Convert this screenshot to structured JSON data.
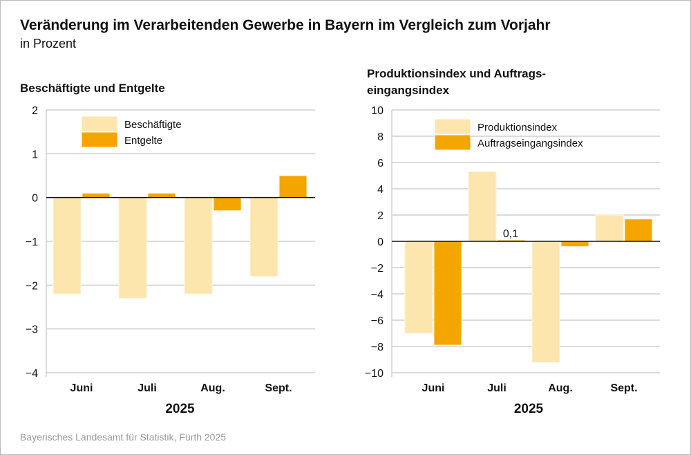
{
  "title": "Veränderung im Verarbeitenden Gewerbe in Bayern im Vergleich zum Vorjahr",
  "subtitle": "in Prozent",
  "source": "Bayerisches Landesamt für Statistik, Fürth 2025",
  "colors": {
    "light": "#fde6ad",
    "dark": "#f5a500"
  },
  "chart_data": [
    {
      "type": "bar",
      "title": "Beschäftigte und Entgelte",
      "categories": [
        "Juni",
        "Juli",
        "Aug.",
        "Sept."
      ],
      "xlabel": "2025",
      "ylim": [
        -4,
        2
      ],
      "yticks": [
        2,
        1,
        0,
        -1,
        -2,
        -3,
        -4
      ],
      "ytick_labels": [
        "2",
        "1",
        "0",
        "−1",
        "−2",
        "−3",
        "−4"
      ],
      "grid": true,
      "legend": "top-left",
      "series": [
        {
          "name": "Beschäftigte",
          "values": [
            -2.2,
            -2.3,
            -2.2,
            -1.8
          ]
        },
        {
          "name": "Entgelte",
          "values": [
            0.1,
            0.1,
            -0.3,
            0.5
          ]
        }
      ]
    },
    {
      "type": "bar",
      "title": "Produktionsindex und Auftrags-eingangsindex",
      "categories": [
        "Juni",
        "Juli",
        "Aug.",
        "Sept."
      ],
      "xlabel": "2025",
      "ylim": [
        -10,
        10
      ],
      "yticks": [
        10,
        8,
        6,
        4,
        2,
        0,
        -2,
        -4,
        -6,
        -8,
        -10
      ],
      "ytick_labels": [
        "10",
        "8",
        "6",
        "4",
        "2",
        "0",
        "−2",
        "−4",
        "−6",
        "−8",
        "−10"
      ],
      "grid": true,
      "legend": "top-left",
      "series": [
        {
          "name": "Produktionsindex",
          "values": [
            -7.0,
            5.3,
            -9.2,
            2.0
          ]
        },
        {
          "name": "Auftragseingangsindex",
          "values": [
            -7.9,
            0.1,
            -0.4,
            1.7
          ]
        }
      ],
      "annotations": [
        "0,1"
      ]
    }
  ]
}
